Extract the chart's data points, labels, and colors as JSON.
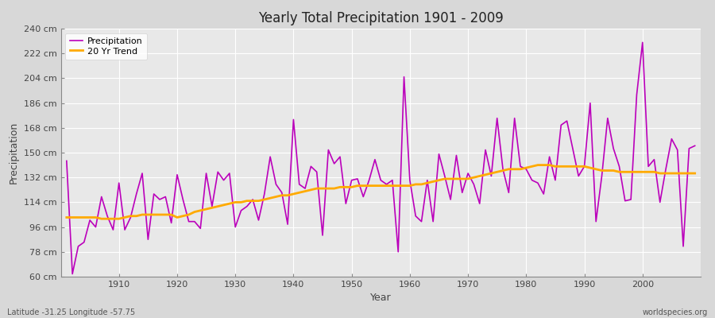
{
  "title": "Yearly Total Precipitation 1901 - 2009",
  "xlabel": "Year",
  "ylabel": "Precipitation",
  "lat_label": "Latitude -31.25 Longitude -57.75",
  "credit_label": "worldspecies.org",
  "precip_color": "#bb00bb",
  "trend_color": "#ffaa00",
  "fig_facecolor": "#d8d8d8",
  "plot_facecolor": "#e8e8e8",
  "years": [
    1901,
    1902,
    1903,
    1904,
    1905,
    1906,
    1907,
    1908,
    1909,
    1910,
    1911,
    1912,
    1913,
    1914,
    1915,
    1916,
    1917,
    1918,
    1919,
    1920,
    1921,
    1922,
    1923,
    1924,
    1925,
    1926,
    1927,
    1928,
    1929,
    1930,
    1931,
    1932,
    1933,
    1934,
    1935,
    1936,
    1937,
    1938,
    1939,
    1940,
    1941,
    1942,
    1943,
    1944,
    1945,
    1946,
    1947,
    1948,
    1949,
    1950,
    1951,
    1952,
    1953,
    1954,
    1955,
    1956,
    1957,
    1958,
    1959,
    1960,
    1961,
    1962,
    1963,
    1964,
    1965,
    1966,
    1967,
    1968,
    1969,
    1970,
    1971,
    1972,
    1973,
    1974,
    1975,
    1976,
    1977,
    1978,
    1979,
    1980,
    1981,
    1982,
    1983,
    1984,
    1985,
    1986,
    1987,
    1988,
    1989,
    1990,
    1991,
    1992,
    1993,
    1994,
    1995,
    1996,
    1997,
    1998,
    1999,
    2000,
    2001,
    2002,
    2003,
    2004,
    2005,
    2006,
    2007,
    2008,
    2009
  ],
  "precip": [
    144,
    62,
    82,
    85,
    101,
    96,
    118,
    104,
    94,
    128,
    94,
    103,
    120,
    135,
    87,
    120,
    116,
    118,
    99,
    134,
    116,
    100,
    100,
    95,
    135,
    111,
    136,
    130,
    135,
    96,
    108,
    111,
    116,
    101,
    120,
    147,
    127,
    121,
    98,
    174,
    127,
    124,
    140,
    136,
    90,
    152,
    142,
    147,
    113,
    130,
    131,
    118,
    130,
    145,
    130,
    127,
    130,
    78,
    205,
    130,
    104,
    100,
    130,
    100,
    149,
    133,
    116,
    148,
    121,
    135,
    127,
    113,
    152,
    133,
    175,
    138,
    121,
    175,
    140,
    138,
    130,
    128,
    120,
    147,
    130,
    170,
    173,
    153,
    133,
    140,
    186,
    100,
    133,
    175,
    153,
    140,
    115,
    116,
    192,
    230,
    140,
    145,
    114,
    138,
    160,
    152,
    82,
    153,
    155
  ],
  "trend": [
    103,
    103,
    103,
    103,
    103,
    103,
    102,
    102,
    102,
    102,
    103,
    104,
    104,
    105,
    105,
    105,
    105,
    105,
    105,
    103,
    104,
    105,
    107,
    108,
    109,
    110,
    111,
    112,
    113,
    114,
    114,
    115,
    115,
    115,
    116,
    117,
    118,
    119,
    119,
    120,
    121,
    122,
    123,
    124,
    124,
    124,
    124,
    125,
    125,
    125,
    126,
    126,
    126,
    126,
    126,
    126,
    126,
    126,
    126,
    126,
    127,
    127,
    128,
    129,
    130,
    131,
    131,
    131,
    131,
    131,
    132,
    133,
    134,
    135,
    136,
    137,
    138,
    138,
    138,
    139,
    140,
    141,
    141,
    141,
    140,
    140,
    140,
    140,
    140,
    140,
    139,
    138,
    137,
    137,
    137,
    136,
    136,
    136,
    136,
    136,
    136,
    136,
    135,
    135,
    135,
    135,
    135,
    135,
    135
  ],
  "ylim": [
    60,
    240
  ],
  "yticks": [
    60,
    78,
    96,
    114,
    132,
    150,
    168,
    186,
    204,
    222,
    240
  ],
  "xlim": [
    1900,
    2010
  ],
  "xticks": [
    1910,
    1920,
    1930,
    1940,
    1950,
    1960,
    1970,
    1980,
    1990,
    2000
  ]
}
